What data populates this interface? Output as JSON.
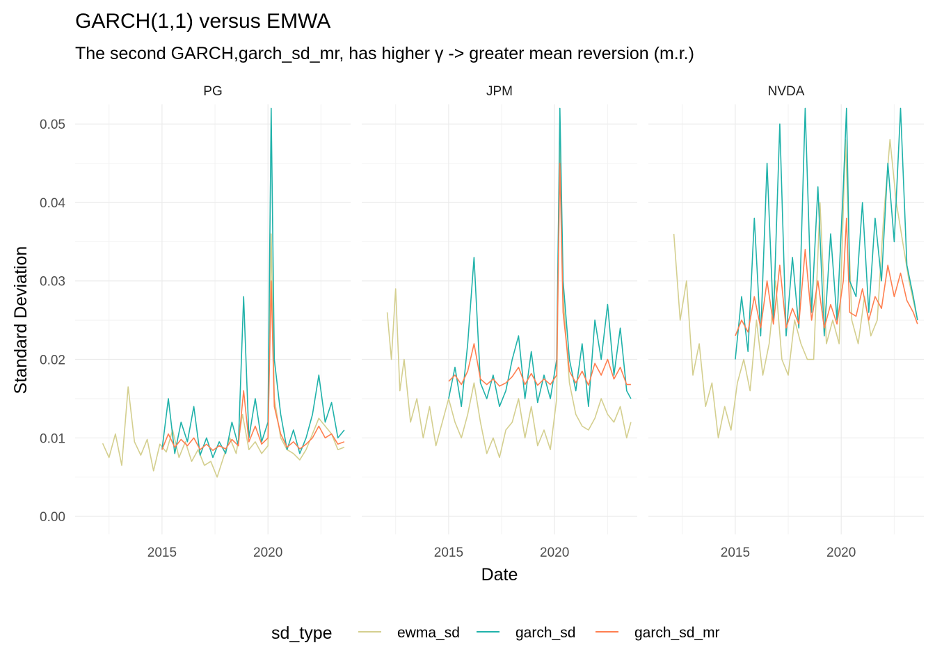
{
  "colors": {
    "ewma_sd": "#d4cf8f",
    "garch_sd": "#20b2aa",
    "garch_sd_mr": "#ff7f50",
    "grid_major": "#ebebeb",
    "grid_minor": "#f2f2f2"
  },
  "chart_data": {
    "type": "line",
    "title": "GARCH(1,1) versus EMWA",
    "subtitle": "The second GARCH,garch_sd_mr, has higher γ -> greater mean reversion (m.r.)",
    "xlabel": "Date",
    "ylabel": "Standard Deviation",
    "xlim": [
      2010.9,
      2023.9
    ],
    "ylim": [
      -0.0023,
      0.0525
    ],
    "x_ticks": [
      2015,
      2020
    ],
    "x_tick_labels": [
      "2015",
      "2020"
    ],
    "y_ticks": [
      0,
      0.01,
      0.02,
      0.03,
      0.04,
      0.05
    ],
    "y_tick_labels": [
      "0.00",
      "0.01",
      "0.02",
      "0.03",
      "0.04",
      "0.05"
    ],
    "grid": true,
    "legend": {
      "title": "sd_type",
      "position": "bottom",
      "entries": [
        "ewma_sd",
        "garch_sd",
        "garch_sd_mr"
      ]
    },
    "facets": [
      {
        "label": "PG",
        "series": [
          {
            "name": "ewma_sd",
            "x": [
              2012.2,
              2012.5,
              2012.8,
              2013.1,
              2013.4,
              2013.7,
              2014.0,
              2014.3,
              2014.6,
              2014.9,
              2015.2,
              2015.5,
              2015.8,
              2016.1,
              2016.4,
              2016.7,
              2017.0,
              2017.3,
              2017.6,
              2017.9,
              2018.2,
              2018.5,
              2018.8,
              2019.1,
              2019.4,
              2019.7,
              2020.0,
              2020.15,
              2020.3,
              2020.6,
              2020.9,
              2021.2,
              2021.5,
              2021.8,
              2022.1,
              2022.4,
              2022.7,
              2023.0,
              2023.3,
              2023.6
            ],
            "y": [
              0.0093,
              0.0075,
              0.0105,
              0.0065,
              0.0165,
              0.0095,
              0.0078,
              0.0098,
              0.0058,
              0.0092,
              0.0082,
              0.011,
              0.0075,
              0.0095,
              0.007,
              0.0085,
              0.0065,
              0.007,
              0.005,
              0.0075,
              0.01,
              0.008,
              0.013,
              0.0085,
              0.0095,
              0.008,
              0.009,
              0.036,
              0.015,
              0.01,
              0.0085,
              0.008,
              0.0072,
              0.0085,
              0.0105,
              0.0125,
              0.0115,
              0.0105,
              0.0085,
              0.0088
            ]
          },
          {
            "name": "garch_sd",
            "x": [
              2015.0,
              2015.3,
              2015.6,
              2015.9,
              2016.2,
              2016.5,
              2016.8,
              2017.1,
              2017.4,
              2017.7,
              2018.0,
              2018.3,
              2018.6,
              2018.85,
              2019.1,
              2019.4,
              2019.7,
              2020.0,
              2020.15,
              2020.3,
              2020.6,
              2020.9,
              2021.2,
              2021.5,
              2021.8,
              2022.1,
              2022.4,
              2022.7,
              2023.0,
              2023.3,
              2023.6
            ],
            "y": [
              0.0085,
              0.015,
              0.008,
              0.012,
              0.0095,
              0.014,
              0.0078,
              0.01,
              0.0075,
              0.0095,
              0.008,
              0.012,
              0.009,
              0.028,
              0.01,
              0.015,
              0.0095,
              0.012,
              0.052,
              0.02,
              0.013,
              0.0085,
              0.011,
              0.008,
              0.01,
              0.013,
              0.018,
              0.012,
              0.0145,
              0.01,
              0.011
            ]
          },
          {
            "name": "garch_sd_mr",
            "x": [
              2015.0,
              2015.3,
              2015.6,
              2015.9,
              2016.2,
              2016.5,
              2016.8,
              2017.1,
              2017.4,
              2017.7,
              2018.0,
              2018.3,
              2018.6,
              2018.85,
              2019.1,
              2019.4,
              2019.7,
              2020.0,
              2020.15,
              2020.3,
              2020.6,
              2020.9,
              2021.2,
              2021.5,
              2021.8,
              2022.1,
              2022.4,
              2022.7,
              2023.0,
              2023.3,
              2023.6
            ],
            "y": [
              0.0085,
              0.0105,
              0.0088,
              0.0098,
              0.009,
              0.01,
              0.0085,
              0.0092,
              0.0084,
              0.009,
              0.0086,
              0.0098,
              0.009,
              0.016,
              0.0095,
              0.0115,
              0.0092,
              0.01,
              0.03,
              0.014,
              0.0105,
              0.0088,
              0.0095,
              0.0086,
              0.0092,
              0.01,
              0.0115,
              0.01,
              0.0105,
              0.0092,
              0.0095
            ]
          }
        ]
      },
      {
        "label": "JPM",
        "series": [
          {
            "name": "ewma_sd",
            "x": [
              2012.1,
              2012.3,
              2012.5,
              2012.7,
              2012.9,
              2013.2,
              2013.5,
              2013.8,
              2014.1,
              2014.4,
              2014.7,
              2015.0,
              2015.3,
              2015.6,
              2015.9,
              2016.2,
              2016.5,
              2016.8,
              2017.1,
              2017.4,
              2017.7,
              2018.0,
              2018.3,
              2018.6,
              2018.9,
              2019.2,
              2019.5,
              2019.8,
              2020.1,
              2020.25,
              2020.4,
              2020.7,
              2021.0,
              2021.3,
              2021.6,
              2021.9,
              2022.2,
              2022.5,
              2022.8,
              2023.1,
              2023.4,
              2023.6
            ],
            "y": [
              0.026,
              0.02,
              0.029,
              0.016,
              0.02,
              0.012,
              0.015,
              0.01,
              0.014,
              0.009,
              0.012,
              0.015,
              0.012,
              0.01,
              0.013,
              0.017,
              0.012,
              0.008,
              0.01,
              0.0075,
              0.011,
              0.012,
              0.015,
              0.01,
              0.014,
              0.009,
              0.011,
              0.0085,
              0.015,
              0.05,
              0.028,
              0.017,
              0.013,
              0.0115,
              0.011,
              0.0125,
              0.015,
              0.013,
              0.012,
              0.014,
              0.01,
              0.012
            ]
          },
          {
            "name": "garch_sd",
            "x": [
              2015.0,
              2015.3,
              2015.6,
              2015.9,
              2016.2,
              2016.5,
              2016.8,
              2017.1,
              2017.4,
              2017.7,
              2018.0,
              2018.3,
              2018.6,
              2018.9,
              2019.2,
              2019.5,
              2019.8,
              2020.1,
              2020.25,
              2020.4,
              2020.7,
              2021.0,
              2021.3,
              2021.6,
              2021.9,
              2022.2,
              2022.5,
              2022.8,
              2023.1,
              2023.4,
              2023.6
            ],
            "y": [
              0.015,
              0.019,
              0.014,
              0.022,
              0.033,
              0.017,
              0.015,
              0.018,
              0.014,
              0.016,
              0.02,
              0.023,
              0.015,
              0.021,
              0.0145,
              0.018,
              0.015,
              0.02,
              0.052,
              0.03,
              0.02,
              0.016,
              0.022,
              0.014,
              0.025,
              0.02,
              0.027,
              0.018,
              0.024,
              0.016,
              0.015
            ]
          },
          {
            "name": "garch_sd_mr",
            "x": [
              2015.0,
              2015.3,
              2015.6,
              2015.9,
              2016.2,
              2016.5,
              2016.8,
              2017.1,
              2017.4,
              2017.7,
              2018.0,
              2018.3,
              2018.6,
              2018.9,
              2019.2,
              2019.5,
              2019.8,
              2020.1,
              2020.25,
              2020.4,
              2020.7,
              2021.0,
              2021.3,
              2021.6,
              2021.9,
              2022.2,
              2022.5,
              2022.8,
              2023.1,
              2023.4,
              2023.6
            ],
            "y": [
              0.0172,
              0.018,
              0.0168,
              0.0185,
              0.022,
              0.0175,
              0.0168,
              0.0175,
              0.0166,
              0.017,
              0.0178,
              0.019,
              0.0168,
              0.0182,
              0.0167,
              0.0175,
              0.0168,
              0.018,
              0.045,
              0.026,
              0.0185,
              0.017,
              0.0185,
              0.0167,
              0.0195,
              0.018,
              0.02,
              0.0175,
              0.019,
              0.0168,
              0.0168
            ]
          }
        ]
      },
      {
        "label": "NVDA",
        "series": [
          {
            "name": "ewma_sd",
            "x": [
              2012.1,
              2012.4,
              2012.7,
              2013.0,
              2013.3,
              2013.6,
              2013.9,
              2014.2,
              2014.5,
              2014.8,
              2015.1,
              2015.4,
              2015.7,
              2016.0,
              2016.3,
              2016.6,
              2016.9,
              2017.2,
              2017.5,
              2017.8,
              2018.1,
              2018.4,
              2018.7,
              2019.0,
              2019.3,
              2019.6,
              2019.9,
              2020.2,
              2020.5,
              2020.8,
              2021.1,
              2021.4,
              2021.7,
              2022.0,
              2022.3,
              2022.6,
              2022.9,
              2023.2,
              2023.6
            ],
            "y": [
              0.036,
              0.025,
              0.03,
              0.018,
              0.022,
              0.014,
              0.017,
              0.01,
              0.014,
              0.011,
              0.017,
              0.02,
              0.016,
              0.025,
              0.018,
              0.022,
              0.03,
              0.02,
              0.018,
              0.025,
              0.022,
              0.02,
              0.02,
              0.04,
              0.022,
              0.025,
              0.022,
              0.048,
              0.025,
              0.022,
              0.028,
              0.023,
              0.025,
              0.038,
              0.048,
              0.04,
              0.035,
              0.03,
              0.025
            ]
          },
          {
            "name": "garch_sd",
            "x": [
              2015.0,
              2015.3,
              2015.6,
              2015.9,
              2016.2,
              2016.5,
              2016.8,
              2017.1,
              2017.4,
              2017.7,
              2018.0,
              2018.3,
              2018.6,
              2018.9,
              2019.2,
              2019.5,
              2019.8,
              2020.1,
              2020.25,
              2020.4,
              2020.7,
              2021.0,
              2021.3,
              2021.6,
              2021.9,
              2022.2,
              2022.5,
              2022.8,
              2023.1,
              2023.4,
              2023.6
            ],
            "y": [
              0.02,
              0.028,
              0.021,
              0.038,
              0.023,
              0.045,
              0.025,
              0.05,
              0.023,
              0.033,
              0.024,
              0.052,
              0.026,
              0.042,
              0.023,
              0.036,
              0.025,
              0.042,
              0.052,
              0.03,
              0.028,
              0.04,
              0.026,
              0.038,
              0.03,
              0.045,
              0.035,
              0.052,
              0.032,
              0.028,
              0.025
            ]
          },
          {
            "name": "garch_sd_mr",
            "x": [
              2015.0,
              2015.3,
              2015.6,
              2015.9,
              2016.2,
              2016.5,
              2016.8,
              2017.1,
              2017.4,
              2017.7,
              2018.0,
              2018.3,
              2018.6,
              2018.9,
              2019.2,
              2019.5,
              2019.8,
              2020.1,
              2020.25,
              2020.4,
              2020.7,
              2021.0,
              2021.3,
              2021.6,
              2021.9,
              2022.2,
              2022.5,
              2022.8,
              2023.1,
              2023.4,
              2023.6
            ],
            "y": [
              0.023,
              0.025,
              0.0235,
              0.028,
              0.024,
              0.03,
              0.0245,
              0.032,
              0.024,
              0.0265,
              0.0245,
              0.034,
              0.025,
              0.03,
              0.024,
              0.027,
              0.0245,
              0.03,
              0.038,
              0.026,
              0.0255,
              0.029,
              0.025,
              0.028,
              0.0265,
              0.032,
              0.028,
              0.031,
              0.0275,
              0.026,
              0.0245
            ]
          }
        ]
      }
    ]
  }
}
